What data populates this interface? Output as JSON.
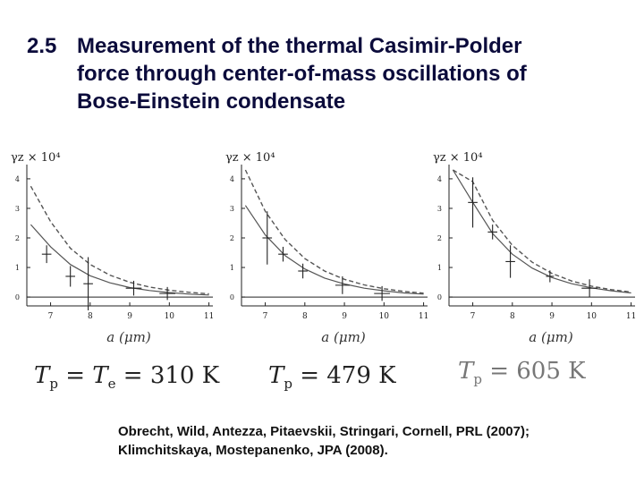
{
  "slide": {
    "number": "2.5",
    "title_lines": [
      "Measurement  of the thermal  Casimir-Polder",
      "force through center-of-mass oscillations of",
      "Bose-Einstein condensate"
    ]
  },
  "formulas": [
    {
      "lhs": "T",
      "lhs_sub": "p",
      "mid": " = T",
      "mid_sub": "e",
      "rhs": " = 310 K"
    },
    {
      "lhs": "T",
      "lhs_sub": "p",
      "mid": "",
      "mid_sub": "",
      "rhs": " = 479 K"
    },
    {
      "lhs": "T",
      "lhs_sub": "p",
      "mid": "",
      "mid_sub": "",
      "rhs": " = 605 K"
    }
  ],
  "reference_lines": [
    "Obrecht, Wild, Antezza, Pitaevskii, Stringari, Cornell, PRL (2007);",
    "Klimchitskaya, Mostepanenko, JPA (2008)."
  ],
  "colors": {
    "title": "#0b0b3b",
    "axis": "#222222",
    "curve": "#555555",
    "data": "#222222"
  },
  "chart_data": [
    {
      "type": "scatter",
      "ylabel": "γz × 10⁴",
      "xlabel": "a (μm)",
      "xlim": [
        6.4,
        11.1
      ],
      "ylim": [
        -0.3,
        4.3
      ],
      "xticks": [
        7,
        8,
        9,
        10,
        11
      ],
      "yticks": [
        0,
        1,
        2,
        3,
        4
      ],
      "solid_curve": [
        [
          6.5,
          2.45
        ],
        [
          7,
          1.7
        ],
        [
          7.5,
          1.1
        ],
        [
          8,
          0.72
        ],
        [
          8.5,
          0.48
        ],
        [
          9,
          0.32
        ],
        [
          9.5,
          0.22
        ],
        [
          10,
          0.15
        ],
        [
          10.5,
          0.1
        ],
        [
          11,
          0.07
        ]
      ],
      "dashed_curve": [
        [
          6.5,
          3.75
        ],
        [
          7,
          2.55
        ],
        [
          7.5,
          1.65
        ],
        [
          8,
          1.1
        ],
        [
          8.5,
          0.74
        ],
        [
          9,
          0.5
        ],
        [
          9.5,
          0.34
        ],
        [
          10,
          0.23
        ],
        [
          10.5,
          0.16
        ],
        [
          11,
          0.11
        ]
      ],
      "points": [
        {
          "x": 6.9,
          "y": 1.45,
          "yerr": 0.3,
          "xerr": 0.12
        },
        {
          "x": 7.5,
          "y": 0.7,
          "yerr": 0.35,
          "xerr": 0.12
        },
        {
          "x": 7.95,
          "y": 0.45,
          "yerr": 0.9,
          "xerr": 0.12
        },
        {
          "x": 9.1,
          "y": 0.3,
          "yerr": 0.25,
          "xerr": 0.2
        },
        {
          "x": 9.95,
          "y": 0.12,
          "yerr": 0.22,
          "xerr": 0.2
        }
      ]
    },
    {
      "type": "scatter",
      "ylabel": "γz × 10⁴",
      "xlabel": "a (μm)",
      "xlim": [
        6.4,
        11.1
      ],
      "ylim": [
        -0.3,
        4.3
      ],
      "xticks": [
        7,
        8,
        9,
        10,
        11
      ],
      "yticks": [
        0,
        1,
        2,
        3,
        4
      ],
      "solid_curve": [
        [
          6.5,
          3.1
        ],
        [
          7,
          2.1
        ],
        [
          7.5,
          1.4
        ],
        [
          8,
          0.95
        ],
        [
          8.5,
          0.64
        ],
        [
          9,
          0.44
        ],
        [
          9.5,
          0.3
        ],
        [
          10,
          0.21
        ],
        [
          10.5,
          0.14
        ],
        [
          11,
          0.1
        ]
      ],
      "dashed_curve": [
        [
          6.5,
          4.3
        ],
        [
          7,
          2.9
        ],
        [
          7.5,
          1.95
        ],
        [
          8,
          1.3
        ],
        [
          8.5,
          0.88
        ],
        [
          9,
          0.6
        ],
        [
          9.5,
          0.41
        ],
        [
          10,
          0.28
        ],
        [
          10.5,
          0.19
        ],
        [
          11,
          0.13
        ]
      ],
      "points": [
        {
          "x": 7.05,
          "y": 2.0,
          "yerr": 0.9,
          "xerr": 0.12
        },
        {
          "x": 7.45,
          "y": 1.45,
          "yerr": 0.25,
          "xerr": 0.12
        },
        {
          "x": 7.95,
          "y": 0.88,
          "yerr": 0.25,
          "xerr": 0.12
        },
        {
          "x": 8.95,
          "y": 0.4,
          "yerr": 0.3,
          "xerr": 0.18
        },
        {
          "x": 9.95,
          "y": 0.12,
          "yerr": 0.25,
          "xerr": 0.2
        }
      ]
    },
    {
      "type": "scatter",
      "ylabel": "γz × 10⁴",
      "xlabel": "a (μm)",
      "xlim": [
        6.4,
        11.1
      ],
      "ylim": [
        -0.3,
        4.3
      ],
      "xticks": [
        7,
        8,
        9,
        10,
        11
      ],
      "yticks": [
        0,
        1,
        2,
        3,
        4
      ],
      "solid_curve": [
        [
          6.5,
          4.3
        ],
        [
          7,
          3.2
        ],
        [
          7.5,
          2.15
        ],
        [
          8,
          1.45
        ],
        [
          8.5,
          0.98
        ],
        [
          9,
          0.66
        ],
        [
          9.5,
          0.45
        ],
        [
          10,
          0.31
        ],
        [
          10.5,
          0.21
        ],
        [
          11,
          0.14
        ]
      ],
      "dashed_curve": [
        [
          6.5,
          4.3
        ],
        [
          7,
          3.9
        ],
        [
          7.5,
          2.6
        ],
        [
          8,
          1.75
        ],
        [
          8.5,
          1.18
        ],
        [
          9,
          0.8
        ],
        [
          9.5,
          0.54
        ],
        [
          10,
          0.37
        ],
        [
          10.5,
          0.25
        ],
        [
          11,
          0.17
        ]
      ],
      "points": [
        {
          "x": 7.0,
          "y": 3.2,
          "yerr": 0.85,
          "xerr": 0.12
        },
        {
          "x": 7.5,
          "y": 2.2,
          "yerr": 0.25,
          "xerr": 0.12
        },
        {
          "x": 7.95,
          "y": 1.2,
          "yerr": 0.55,
          "xerr": 0.12
        },
        {
          "x": 8.95,
          "y": 0.7,
          "yerr": 0.2,
          "xerr": 0.1
        },
        {
          "x": 9.95,
          "y": 0.3,
          "yerr": 0.3,
          "xerr": 0.2
        }
      ]
    }
  ]
}
